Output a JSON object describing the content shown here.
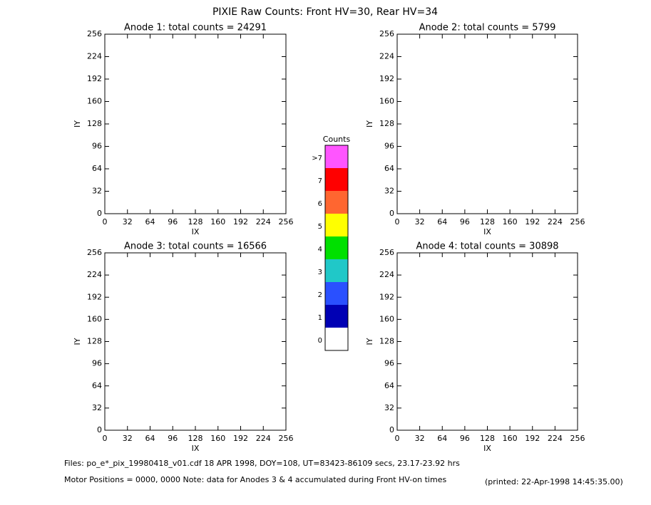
{
  "title": "PIXIE Raw Counts:  Front HV=30, Rear HV=34",
  "chart_data": [
    {
      "type": "heatmap",
      "title": "Anode 1: total counts = 24291",
      "xlabel": "IX",
      "ylabel": "IY",
      "xlim": [
        0,
        256
      ],
      "ylim": [
        0,
        256
      ],
      "xticks": [
        0,
        32,
        64,
        96,
        128,
        160,
        192,
        224,
        256
      ],
      "yticks": [
        0,
        32,
        64,
        96,
        128,
        160,
        192,
        224,
        256
      ]
    },
    {
      "type": "heatmap",
      "title": "Anode 2: total counts = 5799",
      "xlabel": "IX",
      "ylabel": "IY",
      "xlim": [
        0,
        256
      ],
      "ylim": [
        0,
        256
      ],
      "xticks": [
        0,
        32,
        64,
        96,
        128,
        160,
        192,
        224,
        256
      ],
      "yticks": [
        0,
        32,
        64,
        96,
        128,
        160,
        192,
        224,
        256
      ]
    },
    {
      "type": "heatmap",
      "title": "Anode 3: total counts = 16566",
      "xlabel": "IX",
      "ylabel": "IY",
      "xlim": [
        0,
        256
      ],
      "ylim": [
        0,
        256
      ],
      "xticks": [
        0,
        32,
        64,
        96,
        128,
        160,
        192,
        224,
        256
      ],
      "yticks": [
        0,
        32,
        64,
        96,
        128,
        160,
        192,
        224,
        256
      ]
    },
    {
      "type": "heatmap",
      "title": "Anode 4: total counts = 30898",
      "xlabel": "IX",
      "ylabel": "IY",
      "xlim": [
        0,
        256
      ],
      "ylim": [
        0,
        256
      ],
      "xticks": [
        0,
        32,
        64,
        96,
        128,
        160,
        192,
        224,
        256
      ],
      "yticks": [
        0,
        32,
        64,
        96,
        128,
        160,
        192,
        224,
        256
      ]
    }
  ],
  "colorbar": {
    "title": "Counts",
    "levels": [
      "0",
      "1",
      "2",
      "3",
      "4",
      "5",
      "6",
      "7",
      ">7"
    ],
    "colors": [
      "#ffffff",
      "#0000b4",
      "#2a50ff",
      "#20c8c8",
      "#00e000",
      "#ffff00",
      "#ff6630",
      "#ff0000",
      "#ff55ff"
    ]
  },
  "footer": {
    "files": "Files: po_e*_pix_19980418_v01.cdf     18 APR 1998, DOY=108, UT=83423-86109 secs, 23.17-23.92 hrs",
    "note": "Motor Positions = 0000, 0000    Note: data for Anodes 3 & 4 accumulated during Front HV-on times",
    "printed": "(printed: 22-Apr-1998 14:45:35.00)"
  }
}
